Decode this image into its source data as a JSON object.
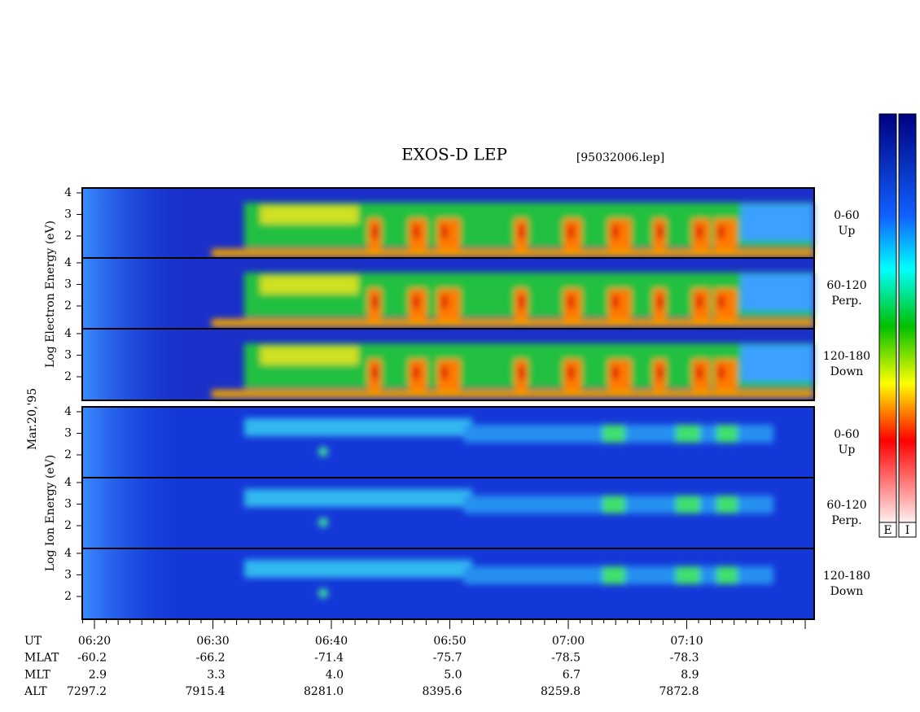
{
  "title": "EXOS-D LEP",
  "file": "[95032006.lep]",
  "date_label": "Mar.20,'95",
  "species": [
    {
      "label": "Log Electron Energy (eV)",
      "panels": [
        {
          "yticks": [
            "4",
            "3",
            "2"
          ],
          "pitch": "0-60",
          "direction": "Up"
        },
        {
          "yticks": [
            "4",
            "3",
            "2"
          ],
          "pitch": "60-120",
          "direction": "Perp."
        },
        {
          "yticks": [
            "4",
            "3",
            "2"
          ],
          "pitch": "120-180",
          "direction": "Down"
        }
      ]
    },
    {
      "label": "Log Ion Energy (eV)",
      "panels": [
        {
          "yticks": [
            "4",
            "3",
            "2"
          ],
          "pitch": "0-60",
          "direction": "Up"
        },
        {
          "yticks": [
            "4",
            "3",
            "2"
          ],
          "pitch": "60-120",
          "direction": "Perp."
        },
        {
          "yticks": [
            "4",
            "3",
            "2"
          ],
          "pitch": "120-180",
          "direction": "Down"
        }
      ]
    }
  ],
  "time_axis": [
    {
      "name": "UT",
      "values": [
        "06:20",
        "06:30",
        "06:40",
        "06:50",
        "07:00",
        "07:10"
      ]
    },
    {
      "name": "MLAT",
      "values": [
        "-60.2",
        "-66.2",
        "-71.4",
        "-75.7",
        "-78.5",
        "-78.3"
      ]
    },
    {
      "name": "MLT",
      "values": [
        "2.9",
        "3.3",
        "4.0",
        "5.0",
        "6.7",
        "8.9"
      ]
    },
    {
      "name": "ALT",
      "values": [
        "7297.2",
        "7915.4",
        "8281.0",
        "8395.6",
        "8259.8",
        "7872.8"
      ]
    }
  ],
  "colorbars": [
    "E",
    "I"
  ]
}
